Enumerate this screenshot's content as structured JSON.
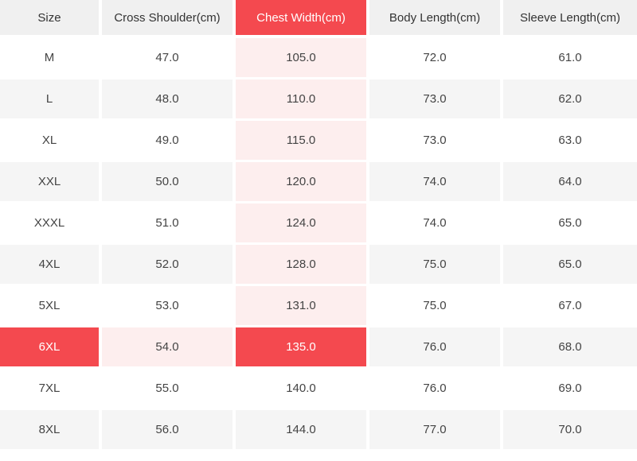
{
  "table": {
    "columns": [
      {
        "key": "size",
        "label": "Size"
      },
      {
        "key": "cross_shoulder",
        "label": "Cross Shoulder(cm)"
      },
      {
        "key": "chest_width",
        "label": "Chest Width(cm)"
      },
      {
        "key": "body_length",
        "label": "Body Length(cm)"
      },
      {
        "key": "sleeve_length",
        "label": "Sleeve Length(cm)"
      }
    ],
    "rows": [
      {
        "size": "M",
        "cross_shoulder": "47.0",
        "chest_width": "105.0",
        "body_length": "72.0",
        "sleeve_length": "61.0"
      },
      {
        "size": "L",
        "cross_shoulder": "48.0",
        "chest_width": "110.0",
        "body_length": "73.0",
        "sleeve_length": "62.0"
      },
      {
        "size": "XL",
        "cross_shoulder": "49.0",
        "chest_width": "115.0",
        "body_length": "73.0",
        "sleeve_length": "63.0"
      },
      {
        "size": "XXL",
        "cross_shoulder": "50.0",
        "chest_width": "120.0",
        "body_length": "74.0",
        "sleeve_length": "64.0"
      },
      {
        "size": "XXXL",
        "cross_shoulder": "51.0",
        "chest_width": "124.0",
        "body_length": "74.0",
        "sleeve_length": "65.0"
      },
      {
        "size": "4XL",
        "cross_shoulder": "52.0",
        "chest_width": "128.0",
        "body_length": "75.0",
        "sleeve_length": "65.0"
      },
      {
        "size": "5XL",
        "cross_shoulder": "53.0",
        "chest_width": "131.0",
        "body_length": "75.0",
        "sleeve_length": "67.0"
      },
      {
        "size": "6XL",
        "cross_shoulder": "54.0",
        "chest_width": "135.0",
        "body_length": "76.0",
        "sleeve_length": "68.0"
      },
      {
        "size": "7XL",
        "cross_shoulder": "55.0",
        "chest_width": "140.0",
        "body_length": "76.0",
        "sleeve_length": "69.0"
      },
      {
        "size": "8XL",
        "cross_shoulder": "56.0",
        "chest_width": "144.0",
        "body_length": "77.0",
        "sleeve_length": "70.0"
      }
    ],
    "highlight": {
      "row_size": "6XL",
      "column_key": "chest_width"
    }
  },
  "colors": {
    "accent_red": "#f4494f",
    "highlight_pink": "#fdeeee",
    "stripe_gray": "#f5f5f5",
    "header_gray": "#f0f0f0"
  }
}
